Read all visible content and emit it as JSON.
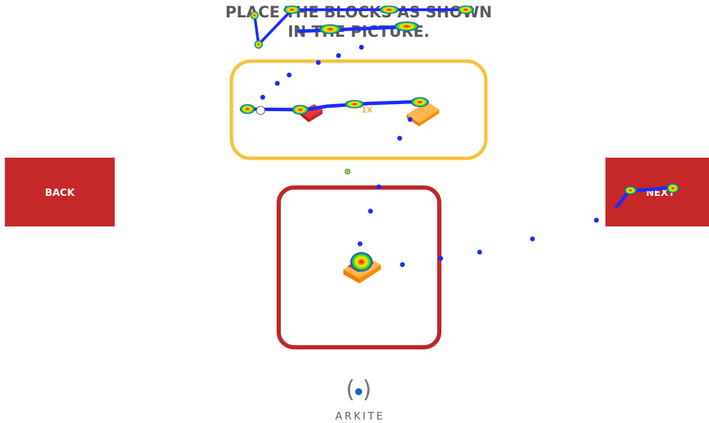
{
  "header": {
    "title_lines": [
      "PLACE THE BLOCKS AS SHOWN",
      "IN THE PICTURE."
    ]
  },
  "reference": {
    "count_label": "1X"
  },
  "buttons": {
    "back": "BACK",
    "next": "NEXT"
  },
  "footer": {
    "logo_text": "ARKITE"
  }
}
